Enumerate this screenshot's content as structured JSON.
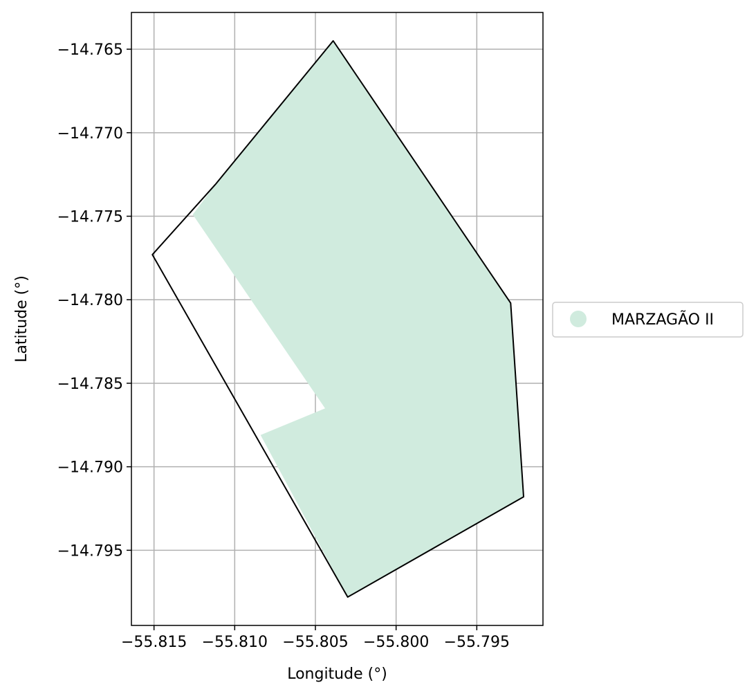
{
  "chart_data": {
    "type": "map",
    "xlabel": "Longitude (°)",
    "ylabel": "Latitude (°)",
    "xlim": [
      -55.8164,
      -55.7909
    ],
    "ylim": [
      -14.7995,
      -14.7628
    ],
    "x_ticks": [
      -55.815,
      -55.81,
      -55.805,
      -55.8,
      -55.795
    ],
    "x_tick_labels": [
      "−55.815",
      "−55.810",
      "−55.805",
      "−55.800",
      "−55.795"
    ],
    "y_ticks": [
      -14.765,
      -14.77,
      -14.775,
      -14.78,
      -14.785,
      -14.79,
      -14.795
    ],
    "y_tick_labels": [
      "−14.765",
      "−14.770",
      "−14.775",
      "−14.780",
      "−14.785",
      "−14.790",
      "−14.795"
    ],
    "grid": true,
    "legend": {
      "position": "right",
      "entries": [
        {
          "label": "MARZAGÃO II",
          "color": "#d0ebde"
        }
      ]
    },
    "fill_color": "#d0ebde",
    "outline_color": "#000000",
    "outline_polygon": [
      [
        -55.8039,
        -14.7645
      ],
      [
        -55.7929,
        -14.7802
      ],
      [
        -55.7921,
        -14.7918
      ],
      [
        -55.803,
        -14.7978
      ],
      [
        -55.8151,
        -14.7773
      ],
      [
        -55.8112,
        -14.7731
      ],
      [
        -55.8039,
        -14.7645
      ]
    ],
    "fill_polygon": [
      [
        -55.8039,
        -14.7645
      ],
      [
        -55.7929,
        -14.7802
      ],
      [
        -55.7921,
        -14.7918
      ],
      [
        -55.803,
        -14.7978
      ],
      [
        -55.8084,
        -14.7881
      ],
      [
        -55.8044,
        -14.7865
      ],
      [
        -55.8126,
        -14.7749
      ],
      [
        -55.8112,
        -14.7731
      ],
      [
        -55.8039,
        -14.7645
      ]
    ]
  }
}
